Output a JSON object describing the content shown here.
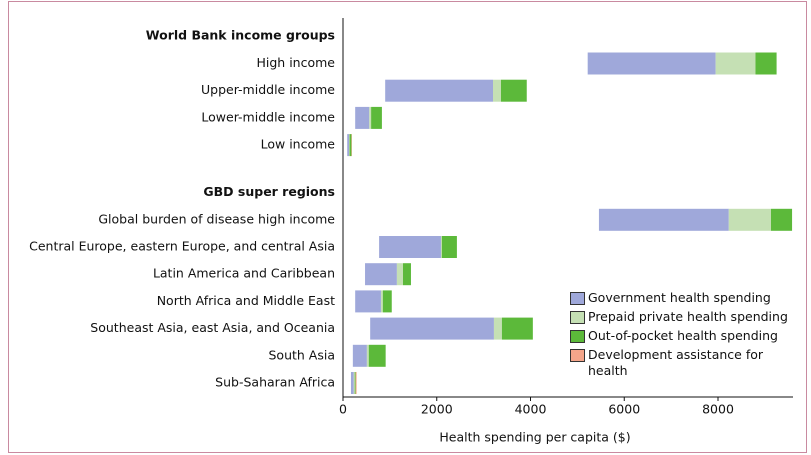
{
  "chart_data": {
    "type": "floating-stacked-bar",
    "groups": [
      {
        "heading": "World Bank income groups",
        "categories": [
          "High income",
          "Upper-middle income",
          "Lower-middle income",
          "Low income"
        ]
      },
      {
        "heading": "GBD super regions",
        "categories": [
          "Global burden of disease high income",
          "Central Europe, eastern Europe, and central Asia",
          "Latin America and Caribbean",
          "North Africa and Middle East",
          "Southeast Asia, east Asia, and Oceania",
          "South Asia",
          "Sub-Saharan Africa"
        ]
      }
    ],
    "bar_start": [
      5220,
      900,
      260,
      90,
      5460,
      770,
      470,
      260,
      580,
      210,
      170
    ],
    "series": [
      {
        "name": "Government health spending",
        "color": "#9fa8da",
        "values": [
          2730,
          2300,
          300,
          40,
          2770,
          1320,
          680,
          550,
          2640,
          300,
          60
        ]
      },
      {
        "name": "Prepaid private health spending",
        "color": "#c5e0b4",
        "values": [
          850,
          170,
          40,
          10,
          900,
          20,
          130,
          40,
          170,
          40,
          20
        ]
      },
      {
        "name": "Out-of-pocket health spending",
        "color": "#5cb93a",
        "values": [
          450,
          550,
          230,
          40,
          450,
          320,
          170,
          190,
          660,
          360,
          20
        ]
      },
      {
        "name": "Development assistance for health",
        "color": "#f4a58a",
        "values": [
          0,
          0,
          0,
          10,
          0,
          0,
          0,
          0,
          0,
          0,
          20
        ]
      }
    ],
    "xlabel": "Health spending per capita ($)",
    "xlim": [
      0,
      9600
    ],
    "xticks": [
      0,
      2000,
      4000,
      6000,
      8000
    ]
  }
}
